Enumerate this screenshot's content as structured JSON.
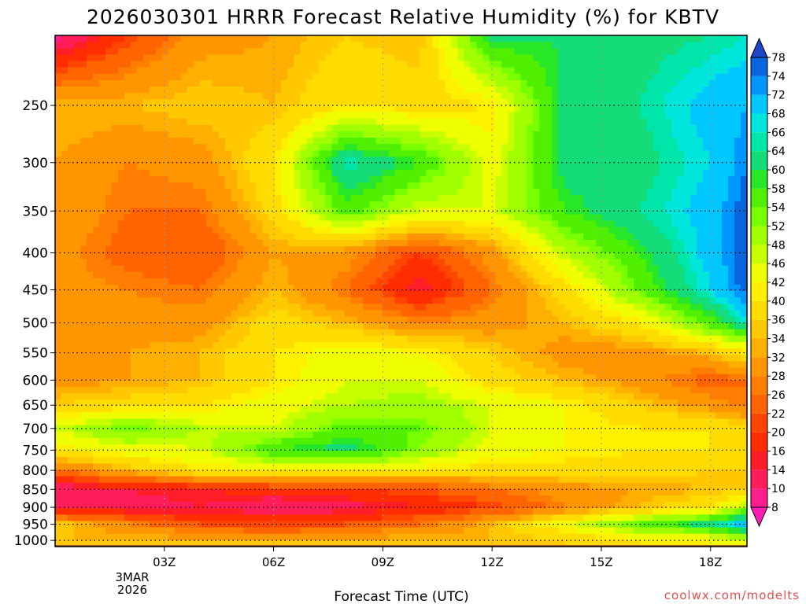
{
  "chart_data": {
    "type": "heatmap",
    "title": "2026030301 HRRR Forecast Relative Humidity (%) for KBTV",
    "xlabel": "Forecast Time (UTC)",
    "ylabel": "",
    "credit": "coolwx.com/modelts",
    "x_ticks": [
      {
        "label": "03Z",
        "hour": 3
      },
      {
        "label": "06Z",
        "hour": 6
      },
      {
        "label": "09Z",
        "hour": 9
      },
      {
        "label": "12Z",
        "hour": 12
      },
      {
        "label": "15Z",
        "hour": 15
      },
      {
        "label": "18Z",
        "hour": 18
      }
    ],
    "x_date_lines": [
      "3MAR",
      "2026"
    ],
    "xlim": [
      0,
      19
    ],
    "y_ticks": [
      250,
      300,
      350,
      400,
      450,
      500,
      550,
      600,
      650,
      700,
      750,
      800,
      850,
      900,
      950,
      1000
    ],
    "ylim": [
      200,
      1020
    ],
    "y_scale": "log-pressure",
    "grid": true,
    "colorbar": {
      "levels": [
        8,
        10,
        14,
        16,
        20,
        22,
        26,
        28,
        32,
        34,
        36,
        40,
        42,
        46,
        48,
        52,
        54,
        58,
        60,
        64,
        66,
        68,
        72,
        74,
        78
      ],
      "colors": [
        "#ff1eb4",
        "#ff1e8c",
        "#ff1e5a",
        "#ff1e28",
        "#ff2d00",
        "#ff4600",
        "#ff6400",
        "#ff7d00",
        "#ff9600",
        "#ffaf00",
        "#ffc800",
        "#ffdc00",
        "#fff000",
        "#f0ff00",
        "#c8ff00",
        "#a0ff00",
        "#78ff00",
        "#50f000",
        "#28e628",
        "#14dc78",
        "#00e6aa",
        "#00e6dc",
        "#00c8ff",
        "#0096ff",
        "#0a64dc",
        "#1e46c8"
      ],
      "placement": "right"
    },
    "ground_color": "#a0522d",
    "rh_grid": {
      "hours": [
        0,
        2,
        4,
        6,
        8,
        10,
        12,
        14,
        16,
        18,
        19
      ],
      "levels": [
        200,
        250,
        300,
        350,
        400,
        450,
        500,
        550,
        600,
        650,
        700,
        750,
        800,
        850,
        900,
        950,
        1000
      ],
      "values": [
        [
          8,
          20,
          30,
          32,
          36,
          34,
          62,
          60,
          62,
          64,
          66
        ],
        [
          34,
          34,
          36,
          34,
          40,
          38,
          40,
          62,
          64,
          70,
          72
        ],
        [
          32,
          28,
          30,
          40,
          66,
          58,
          44,
          62,
          62,
          68,
          74
        ],
        [
          32,
          26,
          26,
          38,
          56,
          46,
          46,
          58,
          64,
          70,
          76
        ],
        [
          30,
          24,
          22,
          32,
          30,
          20,
          30,
          48,
          58,
          70,
          76
        ],
        [
          30,
          28,
          26,
          34,
          26,
          14,
          26,
          38,
          54,
          68,
          76
        ],
        [
          30,
          30,
          30,
          38,
          34,
          28,
          30,
          34,
          40,
          56,
          66
        ],
        [
          30,
          32,
          34,
          40,
          44,
          42,
          36,
          30,
          30,
          34,
          40
        ],
        [
          30,
          32,
          34,
          40,
          46,
          46,
          38,
          34,
          30,
          24,
          26
        ],
        [
          36,
          38,
          40,
          44,
          48,
          50,
          46,
          42,
          36,
          30,
          26
        ],
        [
          46,
          54,
          48,
          46,
          56,
          54,
          46,
          42,
          40,
          40,
          38
        ],
        [
          40,
          44,
          46,
          58,
          62,
          52,
          44,
          42,
          40,
          40,
          40
        ],
        [
          26,
          34,
          40,
          40,
          40,
          40,
          38,
          38,
          38,
          36,
          36
        ],
        [
          10,
          14,
          16,
          18,
          20,
          22,
          26,
          30,
          32,
          34,
          36
        ],
        [
          12,
          12,
          14,
          10,
          12,
          16,
          20,
          28,
          34,
          40,
          50
        ],
        [
          36,
          28,
          22,
          20,
          22,
          26,
          34,
          44,
          54,
          62,
          72
        ],
        [
          34,
          34,
          34,
          34,
          34,
          34,
          34,
          36,
          40,
          42,
          44
        ]
      ]
    }
  }
}
